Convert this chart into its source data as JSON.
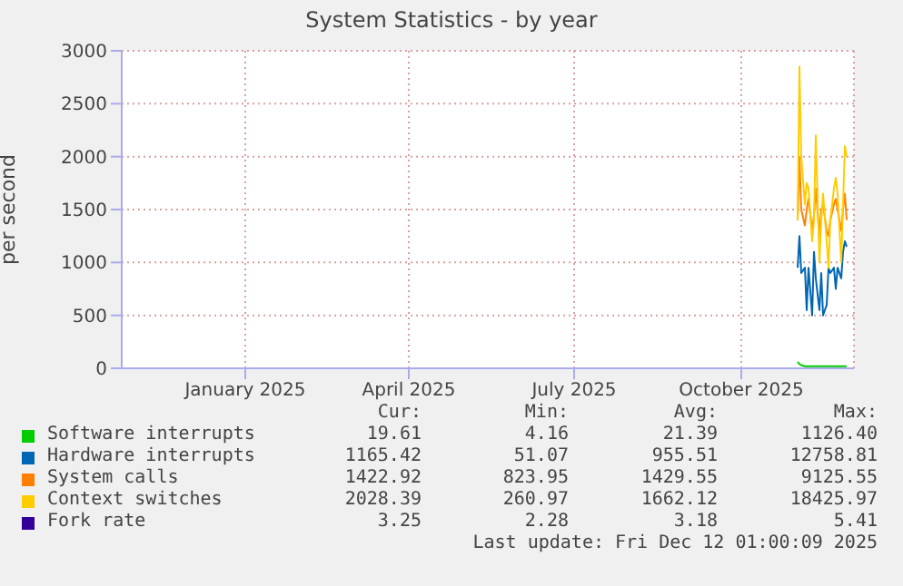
{
  "chart_data": {
    "type": "line",
    "title": "System Statistics - by year",
    "ylabel": "per second",
    "x": [
      "2025-11-01",
      "2025-11-02",
      "2025-11-03",
      "2025-11-05",
      "2025-11-06",
      "2025-11-07",
      "2025-11-09",
      "2025-11-10",
      "2025-11-11",
      "2025-11-13",
      "2025-11-14",
      "2025-11-15",
      "2025-11-17",
      "2025-11-18",
      "2025-11-19",
      "2025-11-21",
      "2025-11-22",
      "2025-11-23",
      "2025-11-25",
      "2025-11-26",
      "2025-11-27",
      "2025-11-28"
    ],
    "series": [
      {
        "name": "Software interrupts",
        "color": "#00cc00",
        "values": [
          60,
          40,
          30,
          20,
          20,
          20,
          20,
          20,
          20,
          20,
          20,
          20,
          20,
          20,
          20,
          20,
          20,
          20,
          20,
          20,
          20,
          20
        ]
      },
      {
        "name": "Hardware interrupts",
        "color": "#0066b3",
        "values": [
          950,
          1250,
          900,
          950,
          550,
          950,
          500,
          1100,
          850,
          550,
          900,
          500,
          600,
          950,
          900,
          950,
          750,
          950,
          850,
          1100,
          1200,
          1150
        ]
      },
      {
        "name": "System calls",
        "color": "#ff8000",
        "values": [
          1400,
          2000,
          1500,
          1350,
          1500,
          1600,
          1300,
          1450,
          1700,
          1250,
          1500,
          1550,
          1300,
          1250,
          1400,
          1550,
          1600,
          1500,
          1300,
          1500,
          1650,
          1400
        ]
      },
      {
        "name": "Context switches",
        "color": "#ffcc00",
        "values": [
          1400,
          2850,
          2000,
          1550,
          1750,
          1700,
          1200,
          1400,
          2200,
          1000,
          1400,
          1650,
          1200,
          950,
          1400,
          1700,
          1800,
          1650,
          1000,
          1550,
          2100,
          2000
        ]
      },
      {
        "name": "Fork rate",
        "color": "#330099",
        "values": [
          null,
          null,
          null,
          null,
          null,
          null,
          null,
          null,
          null,
          null,
          null,
          null,
          null,
          null,
          null,
          null,
          null,
          null,
          null,
          null,
          null,
          null
        ]
      }
    ],
    "xlim": [
      "2024-10-25",
      "2025-12-02"
    ],
    "xticks": [
      {
        "value": "2025-01-01",
        "label": "January 2025"
      },
      {
        "value": "2025-04-01",
        "label": "April 2025"
      },
      {
        "value": "2025-07-01",
        "label": "July 2025"
      },
      {
        "value": "2025-10-01",
        "label": "October 2025"
      }
    ],
    "ylim": [
      0,
      3000
    ],
    "yticks": [
      0,
      500,
      1000,
      1500,
      2000,
      2500,
      3000
    ],
    "grid": true,
    "legend": "bottom",
    "marker": "none",
    "line_style": "solid",
    "annotations": [
      "Cur:",
      "Min:",
      "Avg:",
      "Max:",
      "19.61",
      "4.16",
      "21.39",
      "1126.40",
      "1165.42",
      "51.07",
      "955.51",
      "12758.81",
      "1422.92",
      "823.95",
      "1429.55",
      "9125.55",
      "2028.39",
      "260.97",
      "1662.12",
      "18425.97",
      "3.25",
      "2.28",
      "3.18",
      "5.41",
      "Last update: Fri Dec 12 01:00:09 2025"
    ]
  }
}
